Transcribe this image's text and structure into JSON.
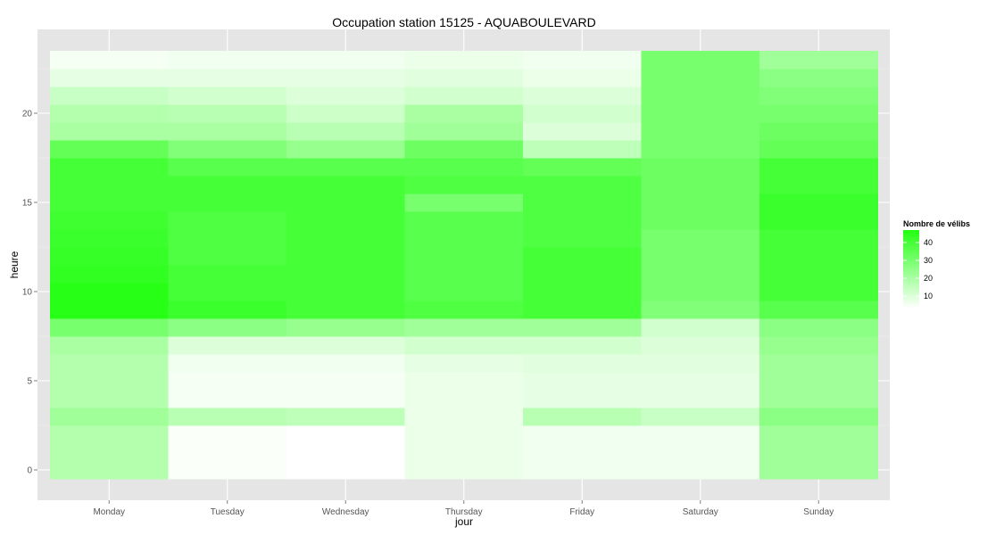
{
  "chart_data": {
    "type": "heatmap",
    "title": "Occupation station 15125 - AQUABOULEVARD",
    "xlabel": "jour",
    "ylabel": "heure",
    "x_categories": [
      "Monday",
      "Tuesday",
      "Wednesday",
      "Thursday",
      "Friday",
      "Saturday",
      "Sunday"
    ],
    "y_values": [
      0,
      1,
      2,
      3,
      4,
      5,
      6,
      7,
      8,
      9,
      10,
      11,
      12,
      13,
      14,
      15,
      16,
      17,
      18,
      19,
      20,
      21,
      22,
      23
    ],
    "y_ticks": [
      0,
      5,
      10,
      15,
      20
    ],
    "ylim": [
      -0.5,
      23.5
    ],
    "grid": true,
    "color_low": "#ffffff",
    "color_high": "#22ff11",
    "value_range": [
      3,
      47
    ],
    "legend": {
      "title": "Nombre de vélibs",
      "ticks": [
        10,
        20,
        30,
        40
      ],
      "placement": "right"
    },
    "series": [
      {
        "name": "Monday",
        "values": [
          18,
          18,
          18,
          22,
          18,
          18,
          18,
          20,
          30,
          46,
          46,
          44,
          43,
          42,
          41,
          40,
          40,
          40,
          34,
          20,
          18,
          14,
          8,
          5
        ]
      },
      {
        "name": "Tuesday",
        "values": [
          4,
          4,
          4,
          17,
          5,
          5,
          6,
          10,
          26,
          42,
          40,
          40,
          38,
          38,
          38,
          40,
          40,
          36,
          28,
          20,
          17,
          12,
          8,
          6
        ]
      },
      {
        "name": "Wednesday",
        "values": [
          3,
          3,
          3,
          16,
          5,
          5,
          6,
          10,
          24,
          40,
          40,
          40,
          40,
          40,
          40,
          40,
          40,
          36,
          24,
          17,
          13,
          10,
          8,
          6
        ]
      },
      {
        "name": "Thursday",
        "values": [
          7,
          7,
          7,
          7,
          7,
          7,
          8,
          12,
          22,
          38,
          36,
          36,
          36,
          36,
          36,
          30,
          38,
          36,
          32,
          22,
          20,
          12,
          9,
          7
        ]
      },
      {
        "name": "Friday",
        "values": [
          6,
          6,
          6,
          17,
          8,
          8,
          9,
          12,
          22,
          40,
          40,
          40,
          40,
          38,
          38,
          38,
          38,
          34,
          16,
          10,
          12,
          10,
          7,
          6
        ]
      },
      {
        "name": "Saturday",
        "values": [
          6,
          6,
          6,
          14,
          8,
          8,
          9,
          10,
          12,
          28,
          30,
          30,
          30,
          30,
          32,
          32,
          32,
          32,
          30,
          30,
          30,
          30,
          30,
          30
        ]
      },
      {
        "name": "Sunday",
        "values": [
          22,
          22,
          22,
          26,
          22,
          22,
          22,
          24,
          26,
          36,
          40,
          40,
          40,
          40,
          42,
          42,
          40,
          40,
          34,
          32,
          30,
          28,
          26,
          22
        ]
      }
    ]
  }
}
